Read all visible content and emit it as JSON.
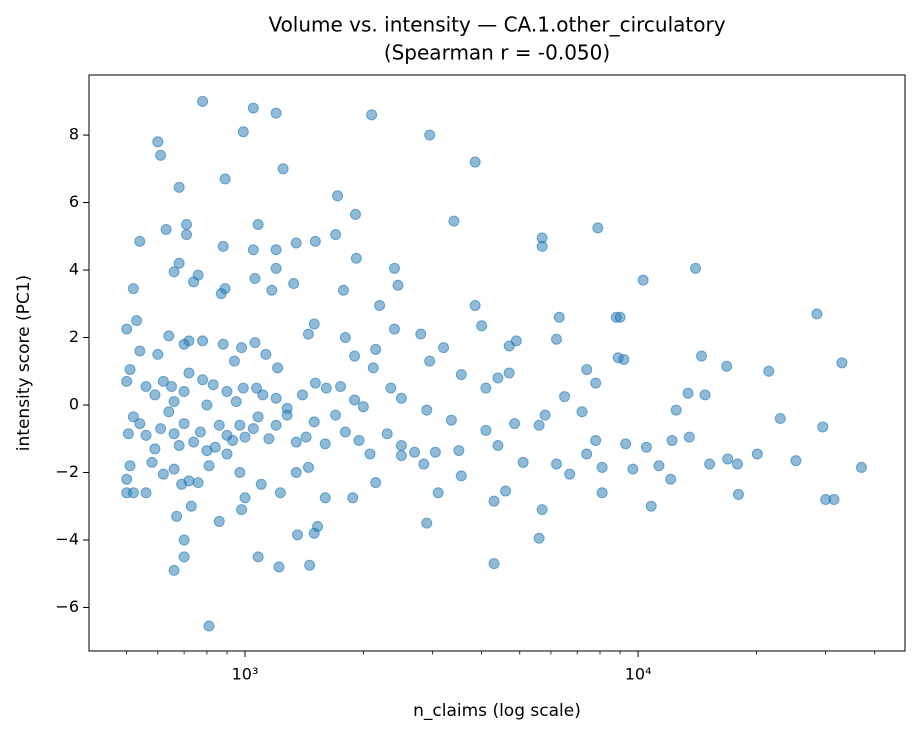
{
  "chart_data": {
    "type": "scatter",
    "title": "Volume vs. intensity — CA.1.other_circulatory",
    "subtitle": "(Spearman r = -0.050)",
    "x_label": "n_claims (log scale)",
    "y_label": "intensity score (PC1)",
    "xscale": "log",
    "xlim": [
      401,
      47750
    ],
    "ylim": [
      -7.29,
      9.78
    ],
    "xticks": [
      {
        "value": 1000,
        "label": "10³"
      },
      {
        "value": 10000,
        "label": "10⁴"
      }
    ],
    "xminorticks": [
      500,
      600,
      700,
      800,
      900,
      2000,
      3000,
      4000,
      5000,
      6000,
      7000,
      8000,
      9000,
      20000,
      30000,
      40000
    ],
    "yticks": [
      {
        "value": -6,
        "label": "−6"
      },
      {
        "value": -4,
        "label": "−4"
      },
      {
        "value": -2,
        "label": "−2"
      },
      0,
      2,
      4,
      6,
      8
    ],
    "grid": false,
    "series": [
      {
        "color": "#1f77b4",
        "x": [
          780,
          1050,
          1200,
          2100,
          990,
          600,
          610,
          2950,
          3850,
          1250,
          890,
          680,
          1720,
          1910,
          3400,
          710,
          1080,
          7900,
          630,
          710,
          1700,
          1510,
          1350,
          540,
          880,
          1050,
          1200,
          5700,
          5700,
          1920,
          680,
          660,
          760,
          1200,
          2400,
          14000,
          10300,
          740,
          1060,
          1330,
          520,
          870,
          890,
          1170,
          1780,
          2450,
          3850,
          2200,
          500,
          530,
          640,
          780,
          880,
          1060,
          1130,
          1450,
          1500,
          1800,
          2400,
          2800,
          3200,
          4000,
          4900,
          6300,
          6200,
          8800,
          9000,
          28500,
          600,
          700,
          540,
          720,
          940,
          980,
          1210,
          1900,
          2150,
          2950,
          4700,
          7400,
          8900,
          9200,
          14500,
          16800,
          21500,
          33000,
          500,
          510,
          560,
          590,
          620,
          650,
          660,
          700,
          720,
          780,
          800,
          830,
          900,
          950,
          990,
          1070,
          1110,
          1200,
          1280,
          1400,
          1510,
          1610,
          1750,
          1900,
          2000,
          2120,
          2350,
          2500,
          2900,
          3550,
          4100,
          4400,
          4700,
          5800,
          6500,
          7200,
          7800,
          13400,
          14800,
          23000,
          29500,
          505,
          520,
          540,
          560,
          590,
          610,
          640,
          660,
          680,
          700,
          740,
          770,
          800,
          840,
          860,
          900,
          930,
          970,
          1000,
          1050,
          1080,
          1150,
          1200,
          1280,
          1350,
          1430,
          1500,
          1600,
          1700,
          1800,
          1950,
          2080,
          2300,
          2500,
          2700,
          3050,
          3350,
          3500,
          4100,
          4400,
          4850,
          5100,
          5600,
          6200,
          6700,
          7400,
          7800,
          8100,
          9300,
          9700,
          10500,
          11300,
          12200,
          12500,
          13500,
          15200,
          16900,
          17900,
          20100,
          25200,
          37000,
          510,
          520,
          500,
          500,
          560,
          580,
          620,
          660,
          690,
          720,
          760,
          810,
          900,
          970,
          1000,
          1100,
          1230,
          1350,
          1450,
          1600,
          1880,
          2150,
          2500,
          2850,
          3100,
          3550,
          4300,
          4600,
          5700,
          8100,
          10800,
          12100,
          18000,
          30000,
          31500,
          670,
          730,
          860,
          980,
          1530,
          1500,
          1360,
          2900,
          5600,
          700,
          700,
          660,
          1080,
          1220,
          1460,
          4300,
          810
        ],
        "values": [
          9.0,
          8.8,
          8.65,
          8.6,
          8.1,
          7.8,
          7.4,
          8.0,
          7.2,
          7.0,
          6.7,
          6.45,
          6.2,
          5.65,
          5.45,
          5.35,
          5.35,
          5.25,
          5.2,
          5.05,
          5.05,
          4.85,
          4.8,
          4.85,
          4.7,
          4.6,
          4.6,
          4.95,
          4.7,
          4.35,
          4.2,
          3.95,
          3.85,
          4.05,
          4.05,
          4.05,
          3.7,
          3.65,
          3.75,
          3.6,
          3.45,
          3.3,
          3.45,
          3.4,
          3.4,
          3.55,
          2.95,
          2.95,
          2.25,
          2.5,
          2.05,
          1.9,
          1.8,
          1.85,
          1.5,
          2.1,
          2.4,
          2.0,
          2.25,
          2.1,
          1.7,
          2.35,
          1.9,
          2.6,
          1.95,
          2.6,
          2.6,
          2.7,
          1.5,
          1.8,
          1.6,
          1.9,
          1.3,
          1.7,
          1.1,
          1.45,
          1.65,
          1.3,
          1.75,
          1.05,
          1.4,
          1.35,
          1.45,
          1.15,
          1.0,
          1.25,
          0.7,
          1.05,
          0.55,
          0.3,
          0.7,
          0.55,
          0.1,
          0.4,
          0.95,
          0.75,
          0.0,
          0.6,
          0.4,
          0.1,
          0.5,
          0.5,
          0.3,
          0.2,
          -0.1,
          0.3,
          0.65,
          0.5,
          0.55,
          0.15,
          -0.05,
          1.1,
          0.5,
          0.2,
          -0.15,
          0.9,
          0.5,
          0.8,
          0.95,
          -0.3,
          0.25,
          -0.2,
          0.65,
          0.35,
          0.3,
          -0.4,
          -0.65,
          -0.85,
          -0.35,
          -0.55,
          -0.9,
          -1.3,
          -0.7,
          -0.2,
          -0.85,
          -1.2,
          -0.55,
          -1.1,
          -0.8,
          -1.35,
          -1.25,
          -0.6,
          -0.9,
          -1.05,
          -0.6,
          -0.95,
          -0.7,
          -0.35,
          -1.0,
          -0.6,
          -0.3,
          -1.1,
          -0.95,
          -0.5,
          -1.15,
          -0.3,
          -0.8,
          -1.05,
          -1.45,
          -0.85,
          -1.2,
          -1.4,
          -1.4,
          -0.45,
          -1.35,
          -0.75,
          -1.2,
          -0.55,
          -1.7,
          -0.6,
          -1.75,
          -2.05,
          -1.45,
          -1.05,
          -1.85,
          -1.15,
          -1.9,
          -1.25,
          -1.8,
          -1.05,
          -0.15,
          -0.95,
          -1.75,
          -1.6,
          -1.75,
          -1.45,
          -1.65,
          -1.85,
          -1.8,
          -2.6,
          -2.6,
          -2.2,
          -2.6,
          -1.7,
          -2.05,
          -1.9,
          -2.35,
          -2.25,
          -2.3,
          -1.8,
          -1.45,
          -2.0,
          -2.75,
          -2.35,
          -2.6,
          -2.0,
          -1.85,
          -2.75,
          -2.75,
          -2.3,
          -1.5,
          -1.75,
          -2.6,
          -2.1,
          -2.85,
          -2.55,
          -3.1,
          -2.6,
          -3.0,
          -2.2,
          -2.65,
          -2.8,
          -2.8,
          -3.3,
          -3.0,
          -3.45,
          -3.1,
          -3.6,
          -3.8,
          -3.85,
          -3.5,
          -3.95,
          -4.0,
          -4.5,
          -4.9,
          -4.5,
          -4.8,
          -4.75,
          -4.7,
          -6.55
        ]
      }
    ]
  }
}
